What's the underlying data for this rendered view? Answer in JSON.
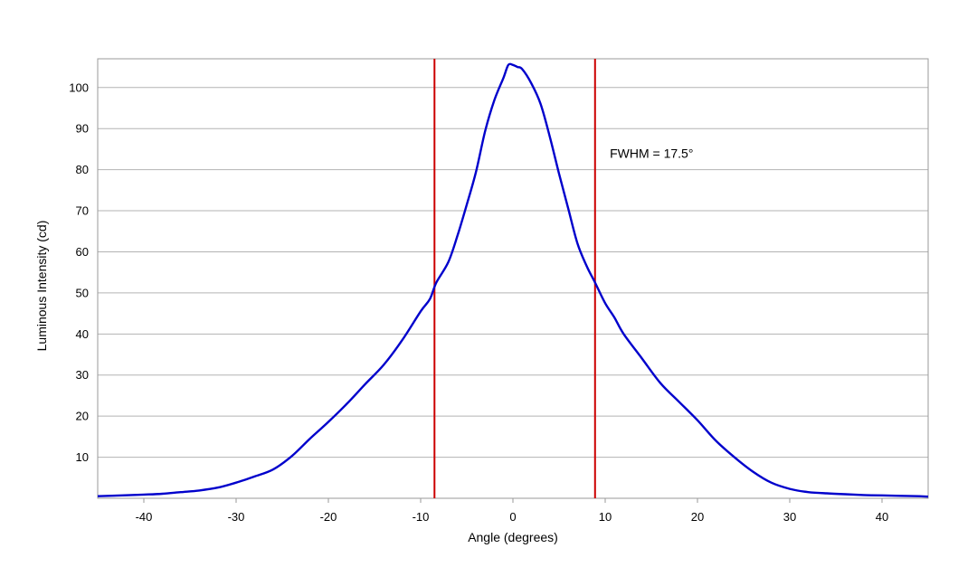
{
  "chart_data": {
    "type": "line",
    "title": "",
    "xlabel": "Angle (degrees)",
    "ylabel": "Luminous Intensity (cd)",
    "xlim": [
      -45,
      45
    ],
    "ylim": [
      0,
      107
    ],
    "x_ticks": [
      -40,
      -30,
      -20,
      -10,
      0,
      10,
      20,
      30,
      40
    ],
    "x_tick_labels": [
      "-40",
      "-30",
      "-20",
      "-10",
      "0",
      "10",
      "20",
      "30",
      "40"
    ],
    "y_ticks": [
      10,
      20,
      30,
      40,
      50,
      60,
      70,
      80,
      90,
      100
    ],
    "y_tick_labels": [
      "10",
      "20",
      "30",
      "40",
      "50",
      "60",
      "70",
      "80",
      "90",
      "100"
    ],
    "grid": true,
    "legend": "none",
    "series": [
      {
        "color": "#0000cc",
        "x": [
          -45,
          -40,
          -38,
          -36,
          -34,
          -32,
          -30,
          -28,
          -26,
          -24,
          -22,
          -20,
          -18,
          -16,
          -14,
          -12,
          -10,
          -9,
          -8.3,
          -7,
          -6,
          -5,
          -4,
          -3,
          -2,
          -1,
          -0.5,
          0,
          0.5,
          1,
          2,
          3,
          4,
          5,
          6,
          7,
          8,
          8.9,
          10,
          11,
          12,
          14,
          16,
          18,
          20,
          22,
          24,
          26,
          28,
          30,
          32,
          34,
          36,
          38,
          40,
          42,
          44,
          45
        ],
        "y": [
          0.5,
          0.9,
          1.1,
          1.5,
          1.9,
          2.6,
          3.8,
          5.3,
          7.0,
          10.2,
          14.5,
          18.6,
          23.0,
          27.8,
          32.5,
          38.5,
          45.5,
          48.5,
          52.5,
          57.5,
          64.0,
          71.5,
          79.5,
          89.5,
          97.0,
          102.5,
          105.5,
          105.5,
          105.0,
          104.5,
          101.0,
          96.0,
          88.0,
          79.0,
          70.5,
          62.0,
          56.5,
          52.5,
          47.5,
          44.0,
          40.0,
          34.0,
          28.0,
          23.5,
          19.0,
          14.0,
          10.0,
          6.5,
          3.8,
          2.3,
          1.5,
          1.2,
          1.0,
          0.8,
          0.7,
          0.6,
          0.5,
          0.4
        ]
      }
    ],
    "vertical_lines": [
      {
        "x": -8.5,
        "color": "#cc0000"
      },
      {
        "x": 8.9,
        "color": "#cc0000"
      }
    ],
    "annotation": {
      "text": "FWHM = 17.5°",
      "x": 10.5,
      "y": 84
    }
  }
}
